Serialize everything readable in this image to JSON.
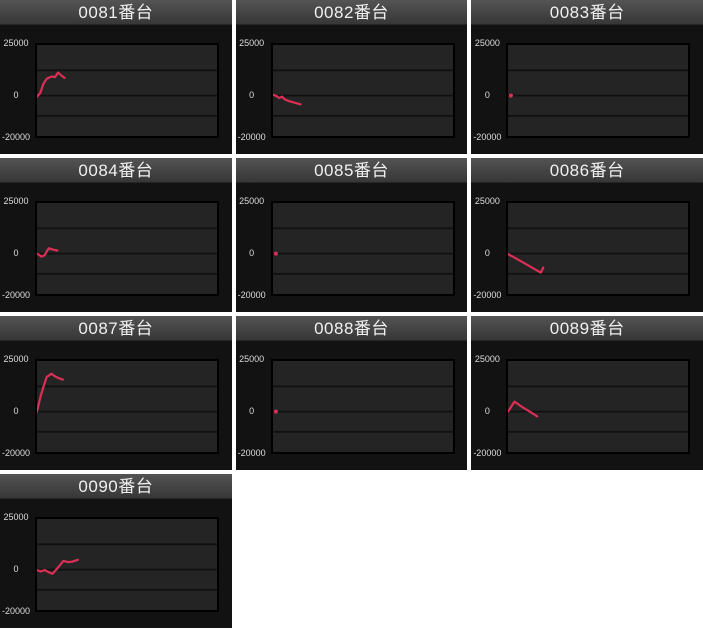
{
  "colors": {
    "page_bg": "#ffffff",
    "panel_bg": "#121212",
    "title_text": "#f0f0f0",
    "axis_label_text": "#dcdcdc",
    "plot_bg": "#242424",
    "plot_border": "#000000",
    "gridline": "#101010",
    "line": "#dc2f55"
  },
  "axis": {
    "yticks": [
      "25000",
      "0",
      "-20000"
    ],
    "ymax": 25000,
    "ymin": -20000
  },
  "chart_data": [
    {
      "type": "line",
      "title": "0081番台",
      "ylim": [
        -20000,
        25000
      ],
      "yticks": [
        "25000",
        "0",
        "-20000"
      ],
      "gridlines": [
        12500,
        0,
        -10000
      ],
      "points": [
        [
          0,
          -500
        ],
        [
          0.018,
          1200
        ],
        [
          0.036,
          5900
        ],
        [
          0.054,
          8300
        ],
        [
          0.081,
          9400
        ],
        [
          0.1,
          9100
        ],
        [
          0.117,
          11400
        ],
        [
          0.135,
          9900
        ],
        [
          0.153,
          8800
        ]
      ]
    },
    {
      "type": "line",
      "title": "0082番台",
      "ylim": [
        -20000,
        25000
      ],
      "yticks": [
        "25000",
        "0",
        "-20000"
      ],
      "gridlines": [
        12500,
        0,
        -10000
      ],
      "points": [
        [
          0,
          400
        ],
        [
          0.02,
          -300
        ],
        [
          0.035,
          -1200
        ],
        [
          0.05,
          -500
        ],
        [
          0.065,
          -1900
        ],
        [
          0.09,
          -2800
        ],
        [
          0.11,
          -3300
        ],
        [
          0.135,
          -3900
        ],
        [
          0.153,
          -4300
        ]
      ]
    },
    {
      "type": "line",
      "title": "0083番台",
      "ylim": [
        -20000,
        25000
      ],
      "yticks": [
        "25000",
        "0",
        "-20000"
      ],
      "gridlines": [
        12500,
        0,
        -10000
      ],
      "points": [
        [
          0.005,
          0
        ]
      ]
    },
    {
      "type": "line",
      "title": "0084番台",
      "ylim": [
        -20000,
        25000
      ],
      "yticks": [
        "25000",
        "0",
        "-20000"
      ],
      "gridlines": [
        12500,
        0,
        -10000
      ],
      "points": [
        [
          0,
          0
        ],
        [
          0.025,
          -1500
        ],
        [
          0.042,
          -800
        ],
        [
          0.065,
          2600
        ],
        [
          0.09,
          1900
        ],
        [
          0.113,
          1500
        ]
      ]
    },
    {
      "type": "line",
      "title": "0085番台",
      "ylim": [
        -20000,
        25000
      ],
      "yticks": [
        "25000",
        "0",
        "-20000"
      ],
      "gridlines": [
        12500,
        0,
        -10000
      ],
      "points": [
        [
          0.005,
          0
        ]
      ]
    },
    {
      "type": "line",
      "title": "0086番台",
      "ylim": [
        -20000,
        25000
      ],
      "yticks": [
        "25000",
        "0",
        "-20000"
      ],
      "gridlines": [
        12500,
        0,
        -10000
      ],
      "points": [
        [
          0,
          -200
        ],
        [
          0.09,
          -4700
        ],
        [
          0.17,
          -8800
        ],
        [
          0.182,
          -9400
        ],
        [
          0.196,
          -6900
        ]
      ]
    },
    {
      "type": "line",
      "title": "0087番台",
      "ylim": [
        -20000,
        25000
      ],
      "yticks": [
        "25000",
        "0",
        "-20000"
      ],
      "gridlines": [
        12500,
        0,
        -10000
      ],
      "points": [
        [
          0,
          0
        ],
        [
          0.018,
          6800
        ],
        [
          0.036,
          12300
        ],
        [
          0.054,
          17100
        ],
        [
          0.081,
          18700
        ],
        [
          0.099,
          17500
        ],
        [
          0.126,
          16300
        ],
        [
          0.144,
          15800
        ]
      ]
    },
    {
      "type": "line",
      "title": "0088番台",
      "ylim": [
        -20000,
        25000
      ],
      "yticks": [
        "25000",
        "0",
        "-20000"
      ],
      "gridlines": [
        12500,
        0,
        -10000
      ],
      "points": [
        [
          0.005,
          0
        ]
      ]
    },
    {
      "type": "line",
      "title": "0089番台",
      "ylim": [
        -20000,
        25000
      ],
      "yticks": [
        "25000",
        "0",
        "-20000"
      ],
      "gridlines": [
        12500,
        0,
        -10000
      ],
      "points": [
        [
          0,
          0
        ],
        [
          0.036,
          4900
        ],
        [
          0.081,
          2100
        ],
        [
          0.126,
          -300
        ],
        [
          0.162,
          -2400
        ]
      ]
    },
    {
      "type": "line",
      "title": "0090番台",
      "ylim": [
        -20000,
        25000
      ],
      "yticks": [
        "25000",
        "0",
        "-20000"
      ],
      "gridlines": [
        12500,
        0,
        -10000
      ],
      "points": [
        [
          0,
          -300
        ],
        [
          0.022,
          -900
        ],
        [
          0.043,
          -200
        ],
        [
          0.065,
          -1300
        ],
        [
          0.086,
          -2100
        ],
        [
          0.119,
          1200
        ],
        [
          0.146,
          4300
        ],
        [
          0.173,
          3700
        ],
        [
          0.195,
          3900
        ],
        [
          0.227,
          4800
        ]
      ]
    }
  ]
}
